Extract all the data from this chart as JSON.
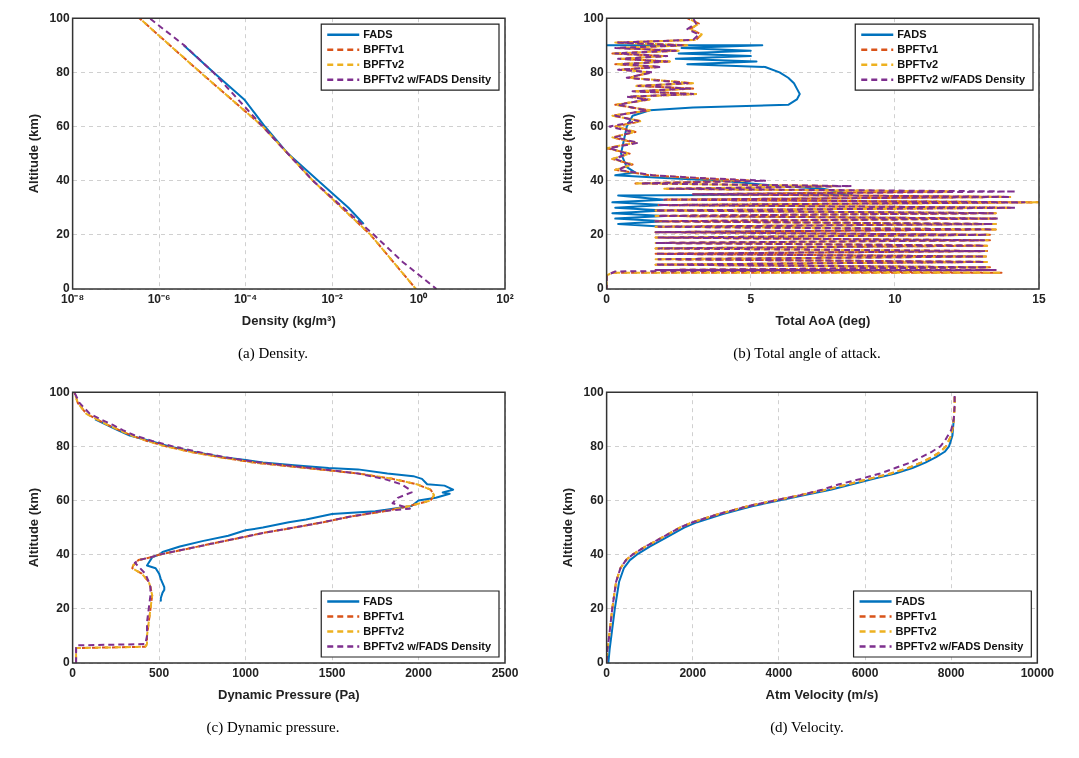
{
  "chart_data": [
    {
      "type": "line",
      "xlabel": "Density (kg/m³)",
      "ylabel": "Altitude (km)",
      "log": "x",
      "grid": true,
      "legend": "top right",
      "xlim": [
        1e-08,
        100
      ],
      "ylim": [
        0,
        100
      ],
      "xticks": [
        {
          "value": 1e-08,
          "label": "10⁻⁸"
        },
        {
          "value": 1e-06,
          "label": "10⁻⁶"
        },
        {
          "value": 0.0001,
          "label": "10⁻⁴"
        },
        {
          "value": 0.01,
          "label": "10⁻²"
        },
        {
          "value": 1,
          "label": "10⁰"
        },
        {
          "value": 100,
          "label": "10²"
        }
      ],
      "yticks": [
        0,
        20,
        40,
        60,
        80,
        100
      ],
      "annotations": [
        "(a)  Density."
      ],
      "series": [
        {
          "name": "FADS",
          "color": "#0072bd",
          "line_style": "solid",
          "x": [
            3.7e-06,
            1.8e-05,
            9.3e-05,
            0.00028,
            0.00095,
            0.0048,
            0.024,
            0.054
          ],
          "values": [
            90,
            80,
            70,
            60,
            50,
            40,
            30,
            24
          ]
        },
        {
          "name": "BPFTv1",
          "color": "#d95319",
          "line_style": "dashed",
          "x": [
            3.5e-07,
            9e-06,
            0.00025,
            0.0036,
            0.078,
            0.87
          ],
          "values": [
            100,
            80,
            60,
            40,
            20,
            0
          ]
        },
        {
          "name": "BPFTv2",
          "color": "#edb120",
          "line_style": "dashed",
          "x": [
            3.5e-07,
            9e-06,
            0.00025,
            0.0036,
            0.078,
            0.87
          ],
          "values": [
            100,
            80,
            60,
            40,
            20,
            0
          ]
        },
        {
          "name": "BPFTv2 w/FADS Density",
          "color": "#7e2f8e",
          "line_style": "dashed",
          "x": [
            6e-07,
            3.8e-06,
            1.8e-05,
            0.00025,
            0.0036,
            0.093,
            0.43,
            2.6
          ],
          "values": [
            100,
            90,
            80,
            60,
            40,
            20,
            10,
            0
          ]
        }
      ]
    },
    {
      "type": "line",
      "xlabel": "Total AoA (deg)",
      "ylabel": "Altitude (km)",
      "grid": true,
      "legend": "top right",
      "xlim": [
        0,
        15
      ],
      "ylim": [
        0,
        100
      ],
      "xticks": [
        0,
        5,
        10,
        15
      ],
      "yticks": [
        0,
        20,
        40,
        60,
        80,
        100
      ],
      "annotations": [
        "(b)  Total angle of attack."
      ],
      "series": [
        {
          "name": "FADS",
          "color": "#0072bd",
          "line_style": "solid",
          "x": [
            0,
            5.4,
            2.6,
            5,
            2.5,
            5,
            2.4,
            5.2,
            2.8,
            5.5,
            6,
            6.3,
            6.5,
            6.6,
            6.7,
            6.6,
            6.3,
            3,
            1.5,
            0.9,
            0.7,
            0.6,
            0.5,
            0.7,
            1,
            0.3,
            2,
            4,
            6,
            7.5,
            8.5,
            0.4,
            2,
            0.2,
            2,
            0.3,
            2,
            0.2,
            2,
            0.3,
            2,
            0.4,
            2
          ],
          "values": [
            90,
            90,
            89,
            88,
            87,
            86,
            85,
            84,
            83,
            82,
            80,
            78,
            76,
            74,
            72,
            70,
            68,
            67,
            66,
            64,
            60,
            55,
            50,
            45,
            43,
            42,
            41,
            40,
            38,
            37,
            35,
            34.5,
            33,
            32,
            31,
            30,
            29,
            28,
            27,
            26,
            25,
            24,
            23
          ]
        },
        {
          "name": "BPFTv1",
          "color": "#d95319",
          "line_style": "dashed",
          "x": [
            2.8,
            3.2,
            2.9,
            3.3,
            3.1,
            0.3,
            2.8,
            0.4,
            2.5,
            0.2,
            2,
            0.5,
            2.2,
            0.3,
            1.8,
            0.5,
            1.5,
            0.8,
            3,
            1,
            3,
            1,
            3.1,
            0.8,
            1.5,
            0.3,
            1.5,
            0.2,
            1.2,
            0.3,
            1,
            0.2,
            1,
            0,
            0.8,
            0.2,
            0.9,
            0.3,
            1.5,
            3,
            5,
            1,
            8,
            2,
            12,
            3,
            14,
            2,
            15,
            1.8,
            14,
            1.7,
            13.5,
            1.7,
            13.5,
            1.7,
            13.5,
            1.7,
            13.5,
            1.7,
            13.3,
            1.7,
            13.3,
            1.7,
            13.2,
            1.7,
            13.2,
            1.7,
            13.2,
            1.7,
            13.2,
            1.7,
            13.3,
            1.7,
            13.7,
            0.2,
            0,
            0
          ],
          "values": [
            100,
            98,
            96,
            94,
            92,
            91,
            90,
            89,
            88,
            87,
            86,
            85,
            84,
            83,
            82,
            81,
            80,
            78,
            76,
            75,
            74,
            73,
            72,
            71,
            70,
            68,
            66,
            64,
            62,
            60,
            58,
            56,
            54,
            52,
            50,
            48,
            46,
            44,
            42,
            41,
            40,
            39,
            38,
            37,
            36,
            35,
            34,
            33,
            32,
            31,
            30,
            29,
            28,
            27,
            26,
            25,
            24,
            23,
            22,
            21,
            20,
            19,
            18,
            17,
            16,
            15,
            14,
            13,
            12,
            11,
            10,
            9,
            8,
            7,
            6,
            6,
            5,
            0
          ]
        },
        {
          "name": "BPFTv2",
          "color": "#edb120",
          "line_style": "dashed",
          "x": [
            2.8,
            3.2,
            2.9,
            3.3,
            3.1,
            0.3,
            2.8,
            0.4,
            2.5,
            0.2,
            2,
            0.5,
            2.2,
            0.3,
            1.8,
            0.5,
            1.5,
            0.8,
            3,
            1,
            3,
            1,
            3.1,
            0.8,
            1.5,
            0.3,
            1.5,
            0.2,
            1.2,
            0.3,
            1,
            0.2,
            1,
            0,
            0.8,
            0.2,
            0.9,
            0.3,
            1.5,
            3,
            5,
            1,
            8,
            2,
            12,
            3,
            14,
            2,
            15,
            1.8,
            14,
            1.7,
            13.5,
            1.7,
            13.5,
            1.7,
            13.5,
            1.7,
            13.5,
            1.7,
            13.3,
            1.7,
            13.3,
            1.7,
            13.2,
            1.7,
            13.2,
            1.7,
            13.2,
            1.7,
            13.2,
            1.7,
            13.3,
            1.7,
            13.7,
            0.2,
            0,
            0
          ],
          "values": [
            100,
            98,
            96,
            94,
            92,
            91,
            90,
            89,
            88,
            87,
            86,
            85,
            84,
            83,
            82,
            81,
            80,
            78,
            76,
            75,
            74,
            73,
            72,
            71,
            70,
            68,
            66,
            64,
            62,
            60,
            58,
            56,
            54,
            52,
            50,
            48,
            46,
            44,
            42,
            41,
            40,
            39,
            38,
            37,
            36,
            35,
            34,
            33,
            32,
            31,
            30,
            29,
            28,
            27,
            26,
            25,
            24,
            23,
            22,
            21,
            20,
            19,
            18,
            17,
            16,
            15,
            14,
            13,
            12,
            11,
            10,
            9,
            8,
            7,
            6,
            6,
            5,
            0
          ]
        },
        {
          "name": "BPFTv2 w/FADS Density",
          "color": "#7e2f8e",
          "line_style": "dashed",
          "x": [
            3,
            3.1,
            2.8,
            3.2,
            3,
            0.4,
            2.6,
            0.3,
            2.4,
            0.3,
            2.1,
            0.4,
            2.1,
            0.5,
            1.9,
            0.4,
            1.6,
            0.7,
            2.8,
            1.1,
            2.9,
            0.9,
            3,
            0.7,
            1.4,
            0.4,
            1.4,
            0.3,
            1.1,
            0.1,
            0.9,
            0.3,
            1.1,
            0.1,
            0.7,
            0.3,
            0.8,
            0.4,
            1.6,
            3.2,
            5.5,
            1.2,
            8.5,
            2.2,
            14.2,
            3,
            14,
            2,
            14.5,
            1.8,
            14.2,
            1.7,
            13.4,
            1.8,
            13.6,
            1.7,
            13.4,
            1.8,
            13.4,
            1.7,
            13.2,
            1.8,
            13.1,
            1.7,
            13.1,
            1.8,
            13.1,
            1.7,
            13.1,
            1.8,
            13.1,
            1.7,
            13.2,
            1.7,
            13.5,
            0.3,
            0,
            0
          ],
          "values": [
            100,
            98,
            96,
            94,
            92,
            91,
            90,
            89,
            88,
            87,
            86,
            85,
            84,
            83,
            82,
            81,
            80,
            78,
            76,
            75,
            74,
            73,
            72,
            71,
            70,
            68,
            66,
            64,
            62,
            60,
            58,
            56,
            54,
            52,
            50,
            48,
            46,
            44,
            42,
            41,
            40,
            39,
            38,
            37,
            36,
            35,
            34,
            33,
            32,
            31,
            30,
            29,
            28,
            27,
            26,
            25,
            24,
            23,
            22,
            21,
            20,
            19,
            18,
            17,
            16,
            15,
            14,
            13,
            12,
            11,
            10,
            9,
            8,
            7,
            7,
            6.5,
            5,
            0
          ]
        }
      ]
    },
    {
      "type": "line",
      "xlabel": "Dynamic Pressure (Pa)",
      "ylabel": "Altitude (km)",
      "grid": true,
      "legend": "bottom right",
      "xlim": [
        0,
        2500
      ],
      "ylim": [
        0,
        100
      ],
      "xticks": [
        0,
        500,
        1000,
        1500,
        2000,
        2500
      ],
      "yticks": [
        0,
        20,
        40,
        60,
        80,
        100
      ],
      "annotations": [
        "(c)  Dynamic pressure."
      ],
      "series": [
        {
          "name": "FADS",
          "color": "#0072bd",
          "line_style": "solid",
          "x": [
            130,
            260,
            330,
            450,
            560,
            700,
            870,
            1000,
            1100,
            1280,
            1480,
            1650,
            1820,
            1970,
            2020,
            2050,
            2150,
            2200,
            2140,
            2180,
            2100,
            2000,
            1960,
            1750,
            1500,
            1350,
            1250,
            1100,
            1000,
            900,
            750,
            620,
            520,
            500,
            460,
            440,
            430,
            480,
            500,
            510,
            530,
            530,
            520,
            510,
            510
          ],
          "values": [
            90,
            86,
            84,
            82,
            80,
            78,
            76,
            75,
            74,
            73,
            72,
            71.5,
            70,
            69,
            68,
            66,
            65.5,
            64,
            63,
            62.5,
            61,
            60,
            58,
            56,
            55,
            53,
            52,
            50,
            49,
            47,
            45,
            43,
            41,
            40,
            39,
            37,
            36,
            35,
            33,
            31,
            28,
            27,
            26,
            24,
            23
          ]
        },
        {
          "name": "BPFTv1",
          "color": "#d95319",
          "line_style": "dashed",
          "x": [
            10,
            30,
            80,
            140,
            200,
            270,
            340,
            430,
            540,
            680,
            850,
            1050,
            1350,
            1650,
            1850,
            1990,
            2070,
            2090,
            2070,
            1950,
            1800,
            1600,
            1450,
            1280,
            1100,
            950,
            800,
            650,
            500,
            450,
            380,
            350,
            345,
            400,
            440,
            450,
            460,
            450,
            440,
            430,
            430,
            420,
            20,
            20,
            20
          ],
          "values": [
            100,
            96,
            92,
            90,
            88,
            86,
            84,
            82,
            80,
            78,
            76,
            74,
            72,
            70,
            68,
            66,
            64,
            62,
            60,
            58,
            56,
            54,
            52,
            50,
            48,
            46,
            44,
            42,
            40,
            39,
            38,
            36,
            35,
            33,
            30,
            28,
            25,
            20,
            15,
            10,
            7,
            6,
            5.5,
            5,
            0
          ]
        },
        {
          "name": "BPFTv2",
          "color": "#edb120",
          "line_style": "dashed",
          "x": [
            10,
            30,
            80,
            140,
            200,
            270,
            340,
            430,
            540,
            680,
            850,
            1050,
            1350,
            1650,
            1850,
            1990,
            2070,
            2090,
            2070,
            1950,
            1800,
            1600,
            1450,
            1280,
            1100,
            950,
            800,
            650,
            500,
            450,
            380,
            350,
            345,
            400,
            440,
            450,
            460,
            450,
            440,
            430,
            430,
            420,
            20,
            20,
            20
          ],
          "values": [
            100,
            96,
            92,
            90,
            88,
            86,
            84,
            82,
            80,
            78,
            76,
            74,
            72,
            70,
            68,
            66,
            64,
            62,
            60,
            58,
            56,
            54,
            52,
            50,
            48,
            46,
            44,
            42,
            40,
            39,
            38,
            36,
            35,
            33,
            30,
            28,
            25,
            20,
            15,
            10,
            7,
            6,
            5.5,
            5,
            0
          ]
        },
        {
          "name": "BPFTv2 w/FADS Density",
          "color": "#7e2f8e",
          "line_style": "dashed",
          "x": [
            10,
            40,
            100,
            160,
            230,
            290,
            360,
            460,
            580,
            720,
            880,
            1080,
            1380,
            1650,
            1800,
            1900,
            1950,
            1960,
            1880,
            1850,
            1950,
            1780,
            1600,
            1450,
            1280,
            1100,
            950,
            800,
            650,
            500,
            450,
            380,
            360,
            420,
            440,
            450,
            450,
            440,
            430,
            430,
            420,
            20,
            20,
            20
          ],
          "values": [
            100,
            96,
            92,
            90,
            88,
            86,
            84,
            82,
            80,
            78,
            76,
            74,
            72,
            70,
            68,
            66,
            64,
            63,
            61,
            59,
            57,
            56,
            54,
            52,
            50,
            48,
            46,
            44,
            42,
            40,
            39,
            38,
            37,
            33,
            30,
            28,
            25,
            20,
            15,
            10,
            7,
            6.5,
            5,
            0
          ]
        }
      ]
    },
    {
      "type": "line",
      "xlabel": "Atm Velocity (m/s)",
      "ylabel": "Altitude (km)",
      "grid": true,
      "legend": "bottom right",
      "xlim": [
        0,
        10000
      ],
      "ylim": [
        0,
        100
      ],
      "xticks": [
        0,
        2000,
        4000,
        6000,
        8000,
        10000
      ],
      "yticks": [
        0,
        20,
        40,
        60,
        80,
        100
      ],
      "annotations": [
        "(d)  Velocity."
      ],
      "series": [
        {
          "name": "FADS",
          "color": "#0072bd",
          "line_style": "solid",
          "x": [
            40,
            70,
            110,
            190,
            290,
            400,
            540,
            700,
            1000,
            1350,
            1800,
            2100,
            2700,
            3400,
            4000,
            4600,
            5200,
            5700,
            6200,
            6700,
            7100,
            7400,
            7650,
            7850,
            7950,
            8030,
            8060
          ],
          "values": [
            0,
            5,
            10,
            20,
            30,
            35,
            38,
            40,
            43,
            46,
            50,
            52,
            55,
            58,
            60,
            62,
            64,
            66,
            68,
            70,
            72,
            74,
            76,
            78,
            80,
            84,
            90
          ]
        },
        {
          "name": "BPFTv1",
          "color": "#d95319",
          "line_style": "dashed",
          "x": [
            60,
            130,
            220,
            320,
            450,
            600,
            900,
            1250,
            1700,
            2000,
            2600,
            3300,
            3900,
            4500,
            5100,
            5600,
            6100,
            6600,
            7000,
            7300,
            7550,
            7750,
            7880,
            8000,
            8050,
            8070,
            8080,
            8080
          ],
          "values": [
            10,
            20,
            30,
            35,
            38,
            40,
            43,
            46,
            50,
            52,
            55,
            58,
            60,
            62,
            64,
            66,
            68,
            70,
            72,
            74,
            76,
            78,
            80,
            84,
            88,
            92,
            96,
            100
          ]
        },
        {
          "name": "BPFTv2",
          "color": "#edb120",
          "line_style": "dashed",
          "x": [
            0,
            20,
            60,
            130,
            220,
            320,
            450,
            600,
            900,
            1250,
            1700,
            2000,
            2600,
            3300,
            3900,
            4500,
            5100,
            5600,
            6100,
            6600,
            7000,
            7300,
            7550,
            7750,
            7880,
            8000,
            8050,
            8070,
            8080,
            8080
          ],
          "values": [
            0,
            5,
            10,
            20,
            30,
            35,
            38,
            40,
            43,
            46,
            50,
            52,
            55,
            58,
            60,
            62,
            64,
            66,
            68,
            70,
            72,
            74,
            76,
            78,
            80,
            84,
            88,
            92,
            96,
            100
          ]
        },
        {
          "name": "BPFTv2 w/FADS Density",
          "color": "#7e2f8e",
          "line_style": "dashed",
          "x": [
            0,
            20,
            60,
            130,
            220,
            320,
            450,
            600,
            900,
            1250,
            1700,
            2000,
            2600,
            3300,
            3900,
            4500,
            5000,
            5400,
            5900,
            6350,
            6700,
            7050,
            7300,
            7550,
            7750,
            7850,
            8000,
            8060,
            8080,
            8080
          ],
          "values": [
            0,
            5,
            10,
            20,
            30,
            35,
            38,
            40,
            43,
            46,
            50,
            52,
            55,
            58,
            60,
            62,
            64,
            66,
            68,
            70,
            72,
            74,
            76,
            78,
            80,
            82,
            86,
            90,
            95,
            100
          ]
        }
      ]
    }
  ]
}
